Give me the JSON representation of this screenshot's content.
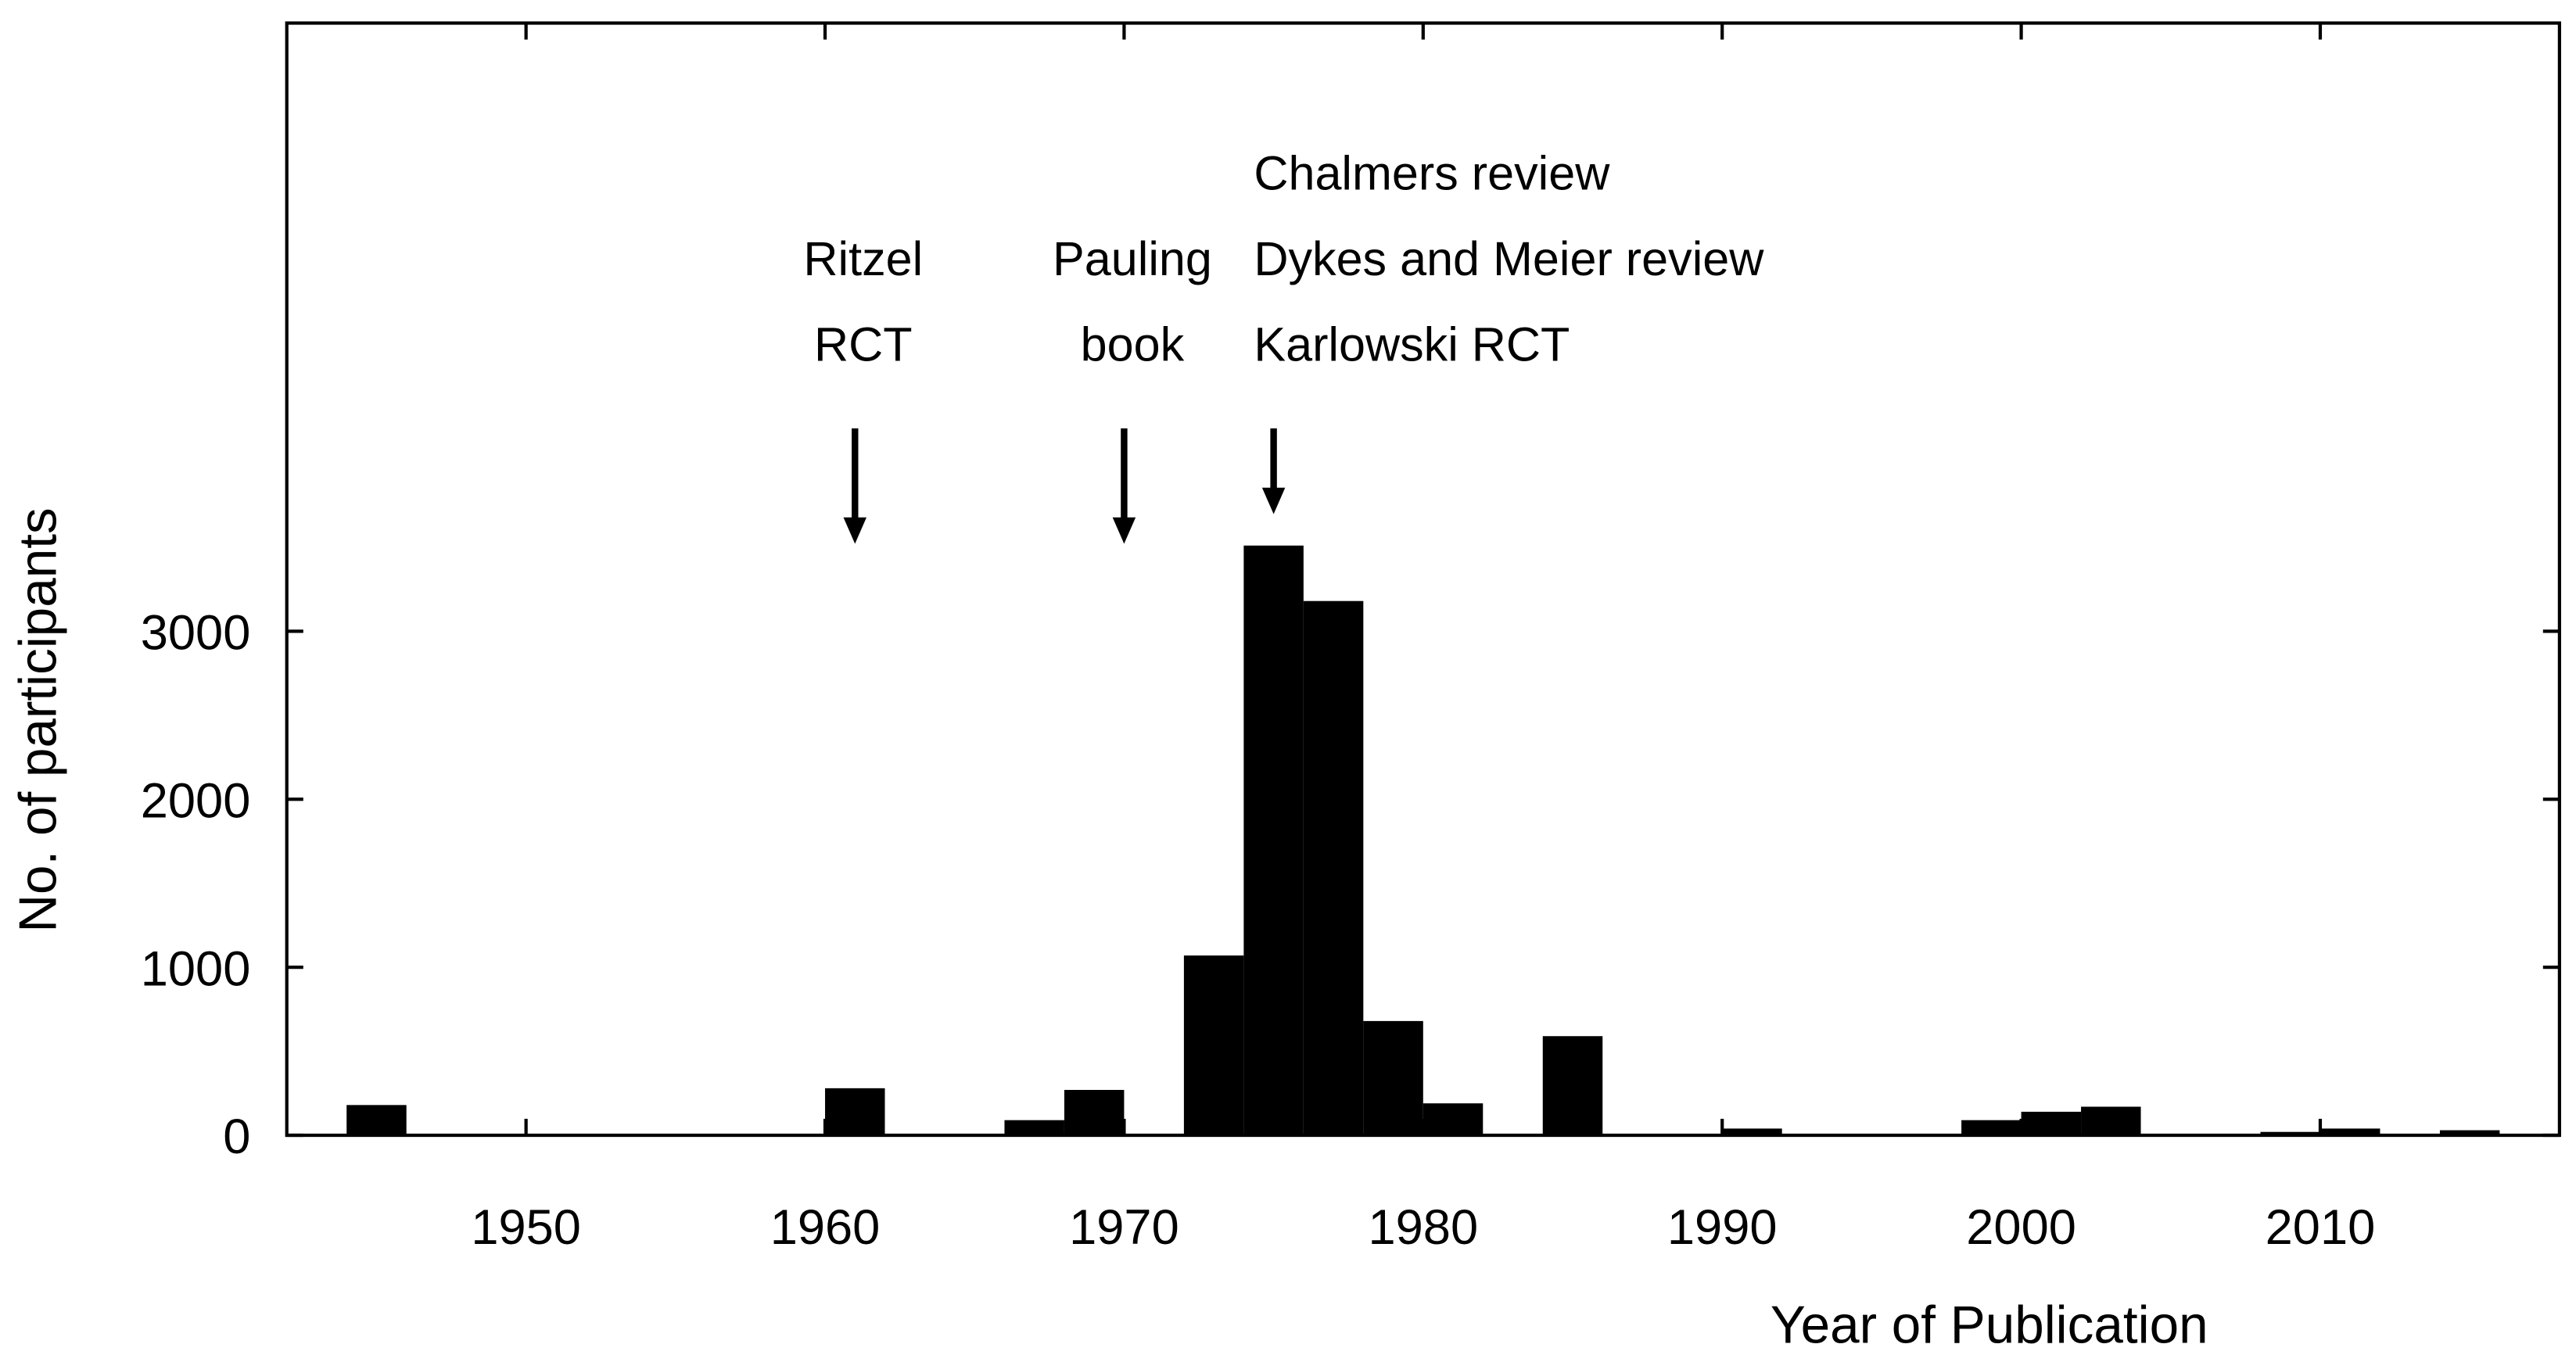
{
  "chart_data": {
    "type": "histogram",
    "x_label": "Year of Publication",
    "y_label": "No. of participants",
    "bins": [
      1944,
      1946,
      1948,
      1950,
      1952,
      1954,
      1956,
      1958,
      1960,
      1962,
      1964,
      1966,
      1968,
      1970,
      1972,
      1974,
      1976,
      1978,
      1980,
      1982,
      1984,
      1986,
      1988,
      1990,
      1992,
      1994,
      1996,
      1998,
      2000,
      2002,
      2004,
      2006,
      2008,
      2010,
      2012,
      2014,
      2016
    ],
    "values": [
      180,
      0,
      0,
      0,
      0,
      0,
      0,
      0,
      280,
      0,
      0,
      90,
      270,
      0,
      1070,
      3510,
      3180,
      680,
      190,
      0,
      590,
      0,
      0,
      40,
      0,
      0,
      0,
      90,
      140,
      170,
      0,
      0,
      20,
      40,
      0,
      30
    ],
    "color": "#000000",
    "xlim": [
      1942,
      2018
    ],
    "ylim": [
      0,
      6620
    ],
    "xticks": [
      1950,
      1960,
      1970,
      1980,
      1990,
      2000,
      2010
    ],
    "yticks": [
      0,
      1000,
      2000,
      3000
    ],
    "annotations": [
      {
        "x": 1961,
        "lines": [
          "Ritzel",
          "RCT"
        ]
      },
      {
        "x": 1970,
        "lines": [
          "Pauling",
          "book"
        ]
      },
      {
        "x": 1975,
        "lines": [
          "Chalmers review",
          "Dykes and Meier review",
          "Karlowski RCT"
        ]
      }
    ]
  }
}
